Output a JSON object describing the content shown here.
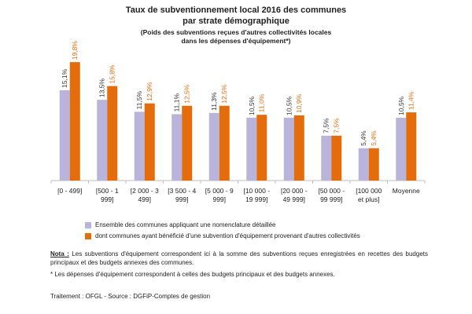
{
  "chart_data": {
    "type": "bar",
    "title": "Taux de subventionnement local 2016 des communes par strate démographique",
    "subtitle": "(Poids des subventions reçues d'autres collectivités locales dans les dépenses d'équipement*)",
    "categories": [
      [
        "[0 - 499]"
      ],
      [
        "[500 - 1",
        "999]"
      ],
      [
        "[2 000 - 3",
        "499]"
      ],
      [
        "[3 500 - 4",
        "999]"
      ],
      [
        "[5 000 - 9",
        "999]"
      ],
      [
        "[10 000 -",
        "19 999]"
      ],
      [
        "[20 000 -",
        "49 999]"
      ],
      [
        "[50 000 -",
        "99 999]"
      ],
      [
        "[100 000",
        "et plus]"
      ],
      [
        "Moyenne"
      ]
    ],
    "series": [
      {
        "name": "Ensemble des communes appliquant une nomenclature détaillée",
        "color": "#b8b4dc",
        "values": [
          15.1,
          13.5,
          11.5,
          11.1,
          11.3,
          10.5,
          10.5,
          7.5,
          5.4,
          10.5
        ],
        "labels": [
          "15,1%",
          "13,5%",
          "11,5%",
          "11,1%",
          "11,3%",
          "10,5%",
          "10,5%",
          "7,5%",
          "5,4%",
          "10,5%"
        ]
      },
      {
        "name": "dont communes ayant bénéficié d'une subvention d'équipement provenant d'autres collectivités",
        "color": "#e46c0a",
        "values": [
          19.8,
          15.8,
          12.9,
          12.5,
          12.5,
          11.0,
          10.9,
          7.5,
          5.4,
          11.4
        ],
        "labels": [
          "19,8%",
          "15,8%",
          "12,9%",
          "12,5%",
          "12,5%",
          "11,0%",
          "10,9%",
          "7,5%",
          "5,4%",
          "11,4%"
        ]
      }
    ],
    "ylim": [
      0,
      21
    ],
    "xlabel": "",
    "ylabel": "",
    "grid": false,
    "legend": "bottom"
  },
  "title_line1": "Taux de subventionnement local 2016 des communes",
  "title_line2": "par strate démographique",
  "subtitle_line1": "(Poids des subventions reçues d'autres collectivités locales",
  "subtitle_line2": "dans les dépenses d'équipement*)",
  "note": {
    "label": "Nota :",
    "text": " Les subventions d'équipement correspondent ici à la somme des subventions reçues enregistrées en recettes des budgets principaux  et des budgets annexes des communes.",
    "footnote": "* Les dépenses d'équipement correspondent à celles des budgets principaux et des budgets annexes.",
    "source": "Traitement : OFGL - Source : DGFiP-Comptes de gestion"
  }
}
